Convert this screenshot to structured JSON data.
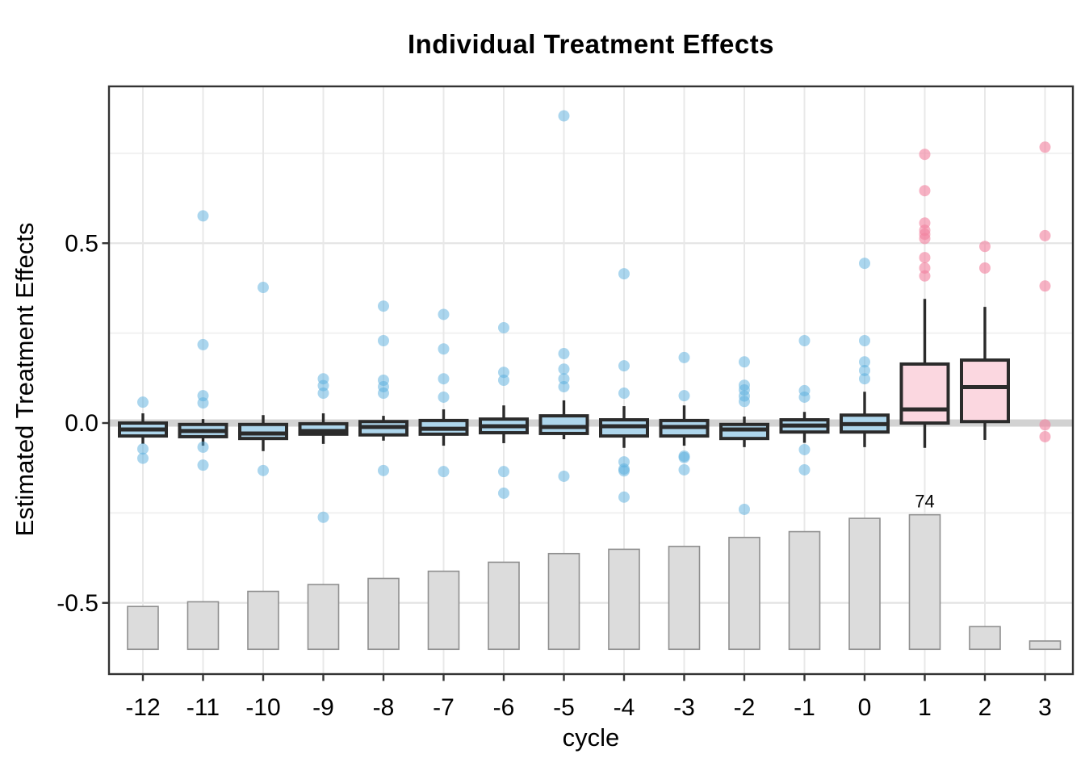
{
  "page": {
    "title": "Individual Treatment Effects"
  },
  "axes": {
    "x": {
      "label": "cycle",
      "ticks": [
        "-12",
        "-11",
        "-10",
        "-9",
        "-8",
        "-7",
        "-6",
        "-5",
        "-4",
        "-3",
        "-2",
        "-1",
        "0",
        "1",
        "2",
        "3"
      ]
    },
    "y": {
      "label": "Estimated Treatment Effects",
      "ticks": [
        {
          "label": "0.5",
          "value": 0.5
        },
        {
          "label": "0.0",
          "value": 0.0
        },
        {
          "label": "-0.5",
          "value": -0.5
        }
      ],
      "minor_gridlines": [
        0.75,
        0.25,
        -0.25
      ],
      "ylim": [
        -0.698,
        0.936
      ]
    }
  },
  "colors": {
    "pre_box_fill": "#AED6EC",
    "pre_point": "#58AEDD",
    "post_box_fill": "#FBD7E0",
    "post_point": "#F283A0",
    "box_stroke": "#2B2B2B",
    "bar_fill": "#DCDCDC",
    "bar_stroke": "#8F8F8F",
    "grid_major": "#E4E4E4",
    "grid_minor": "#F1F1F1",
    "grid_vertical": "#E8E8E8",
    "zero_line": "#D2D2D2",
    "panel_border": "#333333",
    "text": "#000000"
  },
  "chart_data": {
    "type": "boxplot",
    "title": "Individual Treatment Effects",
    "xlabel": "cycle",
    "ylabel": "Estimated Treatment Effects",
    "categories": [
      -12,
      -11,
      -10,
      -9,
      -8,
      -7,
      -6,
      -5,
      -4,
      -3,
      -2,
      -1,
      0,
      1,
      2,
      3
    ],
    "legend_position": "none",
    "grid": true,
    "zero_reference_line": 0.0,
    "boxes": [
      {
        "cycle": -12,
        "group": "pre",
        "q1": -0.036,
        "median": -0.018,
        "q3": 0.0,
        "whisker_low": -0.058,
        "whisker_high": 0.027,
        "outliers": [
          0.058,
          -0.072,
          -0.098
        ]
      },
      {
        "cycle": -11,
        "group": "pre",
        "q1": -0.038,
        "median": -0.022,
        "q3": -0.004,
        "whisker_low": -0.063,
        "whisker_high": 0.011,
        "outliers": [
          0.576,
          0.218,
          0.076,
          0.056,
          -0.067,
          -0.117
        ]
      },
      {
        "cycle": -10,
        "group": "pre",
        "q1": -0.043,
        "median": -0.029,
        "q3": -0.004,
        "whisker_low": -0.078,
        "whisker_high": 0.022,
        "outliers": [
          0.377,
          -0.132
        ]
      },
      {
        "cycle": -9,
        "group": "pre",
        "q1": -0.031,
        "median": -0.022,
        "q3": -0.002,
        "whisker_low": -0.058,
        "whisker_high": 0.027,
        "outliers": [
          0.123,
          0.104,
          0.083,
          -0.262
        ]
      },
      {
        "cycle": -8,
        "group": "pre",
        "q1": -0.033,
        "median": -0.011,
        "q3": 0.004,
        "whisker_low": -0.049,
        "whisker_high": 0.02,
        "outliers": [
          0.325,
          0.229,
          0.119,
          0.101,
          0.083,
          -0.132
        ]
      },
      {
        "cycle": -7,
        "group": "pre",
        "q1": -0.031,
        "median": -0.016,
        "q3": 0.007,
        "whisker_low": -0.063,
        "whisker_high": 0.038,
        "outliers": [
          0.302,
          0.206,
          0.123,
          0.072,
          -0.135
        ]
      },
      {
        "cycle": -6,
        "group": "pre",
        "q1": -0.027,
        "median": -0.009,
        "q3": 0.011,
        "whisker_low": -0.056,
        "whisker_high": 0.049,
        "outliers": [
          0.265,
          0.141,
          0.119,
          -0.135,
          -0.195
        ]
      },
      {
        "cycle": -5,
        "group": "pre",
        "q1": -0.029,
        "median": -0.011,
        "q3": 0.02,
        "whisker_low": -0.045,
        "whisker_high": 0.063,
        "outliers": [
          0.854,
          0.193,
          0.15,
          0.123,
          0.101,
          -0.148
        ]
      },
      {
        "cycle": -4,
        "group": "pre",
        "q1": -0.036,
        "median": -0.009,
        "q3": 0.009,
        "whisker_low": -0.069,
        "whisker_high": 0.047,
        "outliers": [
          0.415,
          0.159,
          0.083,
          -0.108,
          -0.128,
          -0.133,
          -0.206
        ]
      },
      {
        "cycle": -3,
        "group": "pre",
        "q1": -0.036,
        "median": -0.011,
        "q3": 0.007,
        "whisker_low": -0.063,
        "whisker_high": 0.049,
        "outliers": [
          0.182,
          0.076,
          -0.092,
          -0.096,
          -0.13
        ]
      },
      {
        "cycle": -2,
        "group": "pre",
        "q1": -0.043,
        "median": -0.018,
        "q3": -0.004,
        "whisker_low": -0.067,
        "whisker_high": 0.018,
        "outliers": [
          0.17,
          0.105,
          0.092,
          0.075,
          0.06,
          -0.24
        ]
      },
      {
        "cycle": -1,
        "group": "pre",
        "q1": -0.025,
        "median": -0.007,
        "q3": 0.009,
        "whisker_low": -0.055,
        "whisker_high": 0.031,
        "outliers": [
          0.229,
          0.09,
          0.072,
          -0.074,
          -0.13
        ]
      },
      {
        "cycle": 0,
        "group": "pre",
        "q1": -0.025,
        "median": -0.003,
        "q3": 0.022,
        "whisker_low": -0.067,
        "whisker_high": 0.087,
        "outliers": [
          0.444,
          0.229,
          0.17,
          0.146,
          0.123
        ]
      },
      {
        "cycle": 1,
        "group": "post",
        "q1": 0.0,
        "median": 0.038,
        "q3": 0.164,
        "whisker_low": -0.069,
        "whisker_high": 0.345,
        "outliers": [
          0.747,
          0.646,
          0.556,
          0.536,
          0.525,
          0.513,
          0.46,
          0.431,
          0.409
        ]
      },
      {
        "cycle": 2,
        "group": "post",
        "q1": 0.004,
        "median": 0.1,
        "q3": 0.175,
        "whisker_low": -0.047,
        "whisker_high": 0.323,
        "outliers": [
          0.491,
          0.431
        ]
      }
    ],
    "loose_points": [
      {
        "cycle": 3,
        "group": "post",
        "values": [
          0.767,
          0.521,
          0.381,
          -0.005,
          -0.038
        ]
      }
    ],
    "count_bars": {
      "baseline": -0.629,
      "tops": [
        -0.51,
        -0.497,
        -0.468,
        -0.449,
        -0.432,
        -0.412,
        -0.387,
        -0.363,
        -0.351,
        -0.343,
        -0.318,
        -0.302,
        -0.265,
        -0.255,
        -0.566,
        -0.606
      ],
      "label": {
        "cycle": 1,
        "text": "74"
      }
    }
  }
}
